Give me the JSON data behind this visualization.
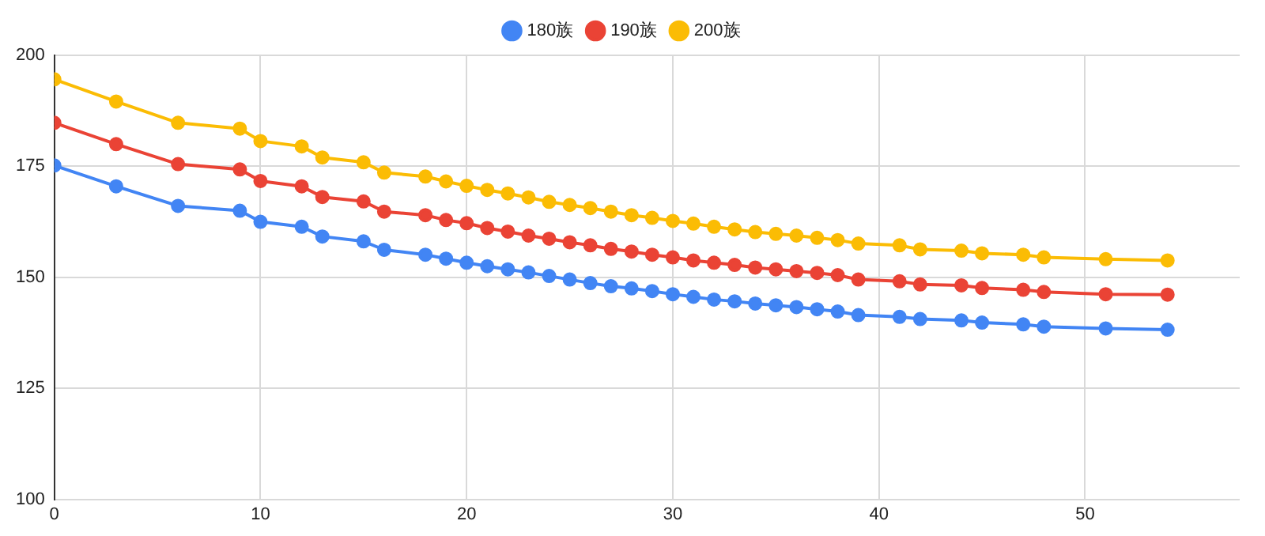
{
  "chart_data": {
    "type": "line",
    "x": [
      0,
      3,
      6,
      9,
      10,
      12,
      13,
      15,
      16,
      18,
      19,
      20,
      21,
      22,
      23,
      24,
      25,
      26,
      27,
      28,
      29,
      30,
      31,
      32,
      33,
      34,
      35,
      36,
      37,
      38,
      39,
      41,
      42,
      44,
      45,
      47,
      48,
      51,
      54
    ],
    "series": [
      {
        "name": "180族",
        "color": "#4285f4",
        "values": [
          175.2,
          170.5,
          166.1,
          165.0,
          162.5,
          161.4,
          159.2,
          158.1,
          156.2,
          155.1,
          154.2,
          153.3,
          152.5,
          151.8,
          151.1,
          150.3,
          149.5,
          148.7,
          148.0,
          147.5,
          146.9,
          146.2,
          145.6,
          145.0,
          144.6,
          144.1,
          143.7,
          143.3,
          142.8,
          142.3,
          141.5,
          141.1,
          140.6,
          140.3,
          139.8,
          139.4,
          138.9,
          138.5,
          138.2
        ]
      },
      {
        "name": "190族",
        "color": "#ea4335",
        "values": [
          184.8,
          180.0,
          175.5,
          174.3,
          171.7,
          170.5,
          168.1,
          167.1,
          164.8,
          164.0,
          162.9,
          162.2,
          161.1,
          160.3,
          159.4,
          158.7,
          157.9,
          157.2,
          156.4,
          155.8,
          155.1,
          154.5,
          153.8,
          153.3,
          152.8,
          152.2,
          151.8,
          151.4,
          151.0,
          150.5,
          149.5,
          149.1,
          148.4,
          148.2,
          147.6,
          147.2,
          146.7,
          146.2,
          146.1
        ]
      },
      {
        "name": "200族",
        "color": "#fbbc04",
        "values": [
          194.6,
          189.6,
          184.8,
          183.5,
          180.7,
          179.5,
          177.0,
          175.9,
          173.6,
          172.7,
          171.6,
          170.6,
          169.7,
          168.9,
          168.0,
          167.0,
          166.3,
          165.6,
          164.8,
          164.0,
          163.4,
          162.7,
          162.1,
          161.4,
          160.8,
          160.2,
          159.8,
          159.4,
          158.9,
          158.4,
          157.6,
          157.2,
          156.3,
          156.0,
          155.4,
          155.1,
          154.5,
          154.1,
          153.8
        ]
      }
    ],
    "xlim": [
      0,
      57.5
    ],
    "xticks": [
      0,
      10,
      20,
      30,
      40,
      50
    ],
    "ylim": [
      100,
      200
    ],
    "yticks": [
      100,
      125,
      150,
      175,
      200
    ],
    "grid": true,
    "legend": "top",
    "marker": "circle",
    "line_style": "solid"
  }
}
